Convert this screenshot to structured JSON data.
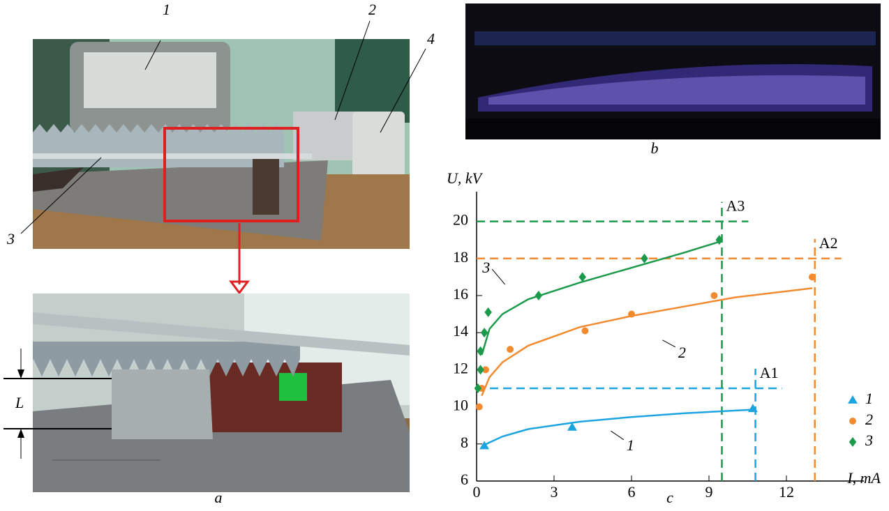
{
  "photo_labels": [
    "1",
    "2",
    "3",
    "4"
  ],
  "dimension_label": "L",
  "captions": [
    "a",
    "b",
    "c"
  ],
  "chart_data": {
    "type": "scatter",
    "x_label": "I, mA",
    "y_label": "U, kV",
    "xlim": [
      0,
      15
    ],
    "ylim": [
      6,
      21.6
    ],
    "xticks": [
      0,
      3,
      6,
      9,
      12
    ],
    "yticks": [
      6,
      8,
      10,
      12,
      14,
      16,
      18,
      20
    ],
    "legend": "lower right",
    "series": [
      {
        "name": "1",
        "color": "#1ba4e0",
        "marker": "triangle",
        "x": [
          0.3,
          3.7,
          10.7
        ],
        "values": [
          7.9,
          8.9,
          9.9
        ],
        "curve": {
          "x": [
            0.3,
            1,
            2,
            4,
            6,
            8,
            10.7
          ],
          "values": [
            7.95,
            8.4,
            8.8,
            9.2,
            9.45,
            9.65,
            9.85
          ]
        }
      },
      {
        "name": "2",
        "color": "#f28a30",
        "marker": "circle",
        "x": [
          0.1,
          0.2,
          0.35,
          1.3,
          4.2,
          6,
          9.2,
          13
        ],
        "values": [
          10,
          11,
          12,
          13.1,
          14.1,
          15,
          16,
          17
        ],
        "curve": {
          "x": [
            0.2,
            0.5,
            1,
            2,
            4,
            6,
            8,
            10,
            13
          ],
          "values": [
            10.6,
            11.6,
            12.4,
            13.3,
            14.3,
            14.9,
            15.4,
            15.9,
            16.4
          ]
        }
      },
      {
        "name": "3",
        "color": "#1a9a4a",
        "marker": "diamond",
        "x": [
          0.05,
          0.15,
          0.15,
          0.3,
          0.45,
          2.4,
          4.1,
          6.5,
          9.4
        ],
        "values": [
          11,
          12,
          13,
          14,
          15.1,
          16,
          17,
          18,
          19
        ],
        "curve": {
          "x": [
            0.2,
            0.5,
            1,
            2,
            4,
            6,
            8,
            9.4
          ],
          "values": [
            12.8,
            14.2,
            15,
            15.8,
            16.7,
            17.5,
            18.3,
            18.9
          ]
        }
      }
    ],
    "reference_lines": [
      {
        "label": "A1",
        "color": "#1ba4e0",
        "x": 10.8,
        "y": 11
      },
      {
        "label": "A2",
        "color": "#f28a30",
        "x": 13.1,
        "y": 18
      },
      {
        "label": "A3",
        "color": "#1a9a4a",
        "x": 9.5,
        "y": 20
      }
    ]
  }
}
